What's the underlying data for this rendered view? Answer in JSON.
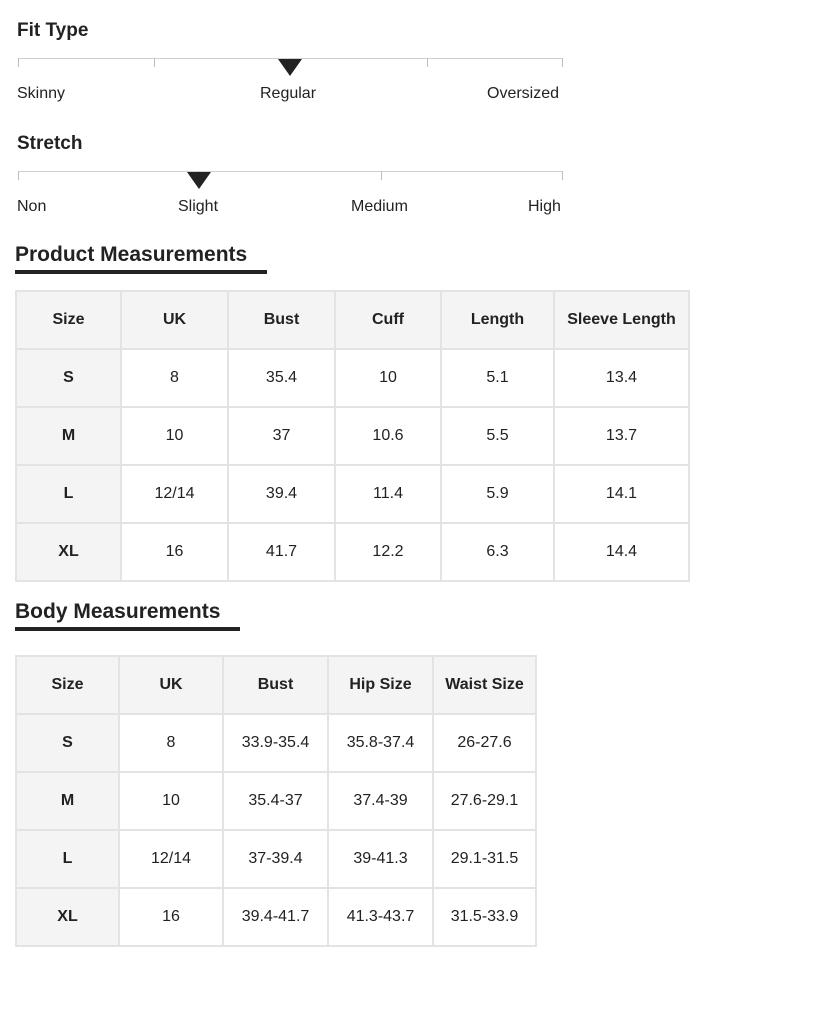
{
  "fit_type": {
    "title": "Fit Type",
    "labels": [
      "Skinny",
      "Regular",
      "Oversized"
    ],
    "selected": "Regular"
  },
  "stretch": {
    "title": "Stretch",
    "labels": [
      "Non",
      "Slight",
      "Medium",
      "High"
    ],
    "selected": "Slight"
  },
  "product_measurements": {
    "title": "Product Measurements",
    "columns": [
      "Size",
      "UK",
      "Bust",
      "Cuff",
      "Length",
      "Sleeve Length"
    ],
    "rows": [
      [
        "S",
        "8",
        "35.4",
        "10",
        "5.1",
        "13.4"
      ],
      [
        "M",
        "10",
        "37",
        "10.6",
        "5.5",
        "13.7"
      ],
      [
        "L",
        "12/14",
        "39.4",
        "11.4",
        "5.9",
        "14.1"
      ],
      [
        "XL",
        "16",
        "41.7",
        "12.2",
        "6.3",
        "14.4"
      ]
    ]
  },
  "body_measurements": {
    "title": "Body Measurements",
    "columns": [
      "Size",
      "UK",
      "Bust",
      "Hip Size",
      "Waist Size"
    ],
    "rows": [
      [
        "S",
        "8",
        "33.9-35.4",
        "35.8-37.4",
        "26-27.6"
      ],
      [
        "M",
        "10",
        "35.4-37",
        "37.4-39",
        "27.6-29.1"
      ],
      [
        "L",
        "12/14",
        "37-39.4",
        "39-41.3",
        "29.1-31.5"
      ],
      [
        "XL",
        "16",
        "39.4-41.7",
        "41.3-43.7",
        "31.5-33.9"
      ]
    ]
  }
}
